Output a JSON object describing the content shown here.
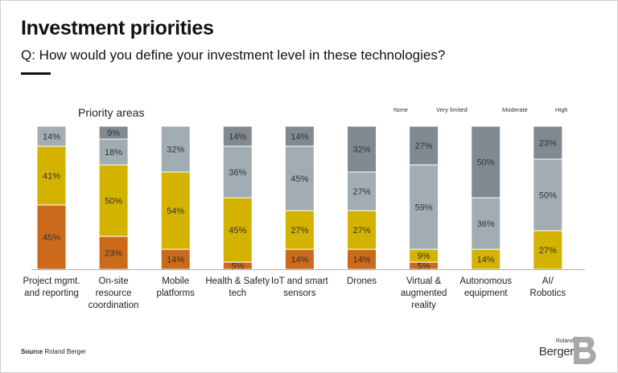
{
  "title": "Investment priorities",
  "subtitle": "Q: How would you define your investment level in these technologies?",
  "source_label": "Source",
  "source_name": "Roland Berger",
  "logo": {
    "top": "Roland",
    "bottom": "Berger"
  },
  "colors": {
    "none": "#cc6a1c",
    "very_limited": "#d4b300",
    "moderate": "#a1acb3",
    "high": "#818a91"
  },
  "chart_data": {
    "type": "bar",
    "stacked": true,
    "normalized": true,
    "title": "Priority areas",
    "categories": [
      "Project mgmt. and reporting",
      "On-site resource coordination",
      "Mobile platforms",
      "Health & Safety tech",
      "IoT and smart sensors",
      "Drones",
      "Virtual & augmented reality",
      "Autonomous equipment",
      "AI/ Robotics"
    ],
    "category_lines": [
      [
        "Project mgmt.",
        "and reporting"
      ],
      [
        "On-site",
        "resource",
        "coordination"
      ],
      [
        "Mobile",
        "platforms"
      ],
      [
        "Health & Safety",
        "tech"
      ],
      [
        "IoT and smart",
        "sensors"
      ],
      [
        "Drones"
      ],
      [
        "Virtual &",
        "augmented",
        "reality"
      ],
      [
        "Autonomous",
        "equipment"
      ],
      [
        "AI/",
        "Robotics"
      ]
    ],
    "legend": [
      "None",
      "Very limited",
      "Moderate",
      "High"
    ],
    "legend_position": "top-right",
    "series": [
      {
        "name": "None",
        "values": [
          45,
          23,
          14,
          5,
          14,
          14,
          5,
          0,
          0
        ]
      },
      {
        "name": "Very limited",
        "values": [
          41,
          50,
          54,
          45,
          27,
          27,
          9,
          14,
          27
        ]
      },
      {
        "name": "Moderate",
        "values": [
          14,
          18,
          32,
          36,
          45,
          27,
          59,
          36,
          50
        ]
      },
      {
        "name": "High",
        "values": [
          0,
          9,
          0,
          14,
          14,
          32,
          27,
          50,
          23
        ]
      }
    ],
    "value_suffix": "%"
  }
}
